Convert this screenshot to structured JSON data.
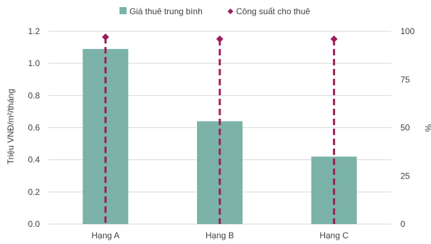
{
  "chart_data": {
    "type": "bar",
    "categories": [
      "Hạng A",
      "Hạng B",
      "Hạng C"
    ],
    "series": [
      {
        "name": "Giá thuê trung bình",
        "kind": "bar",
        "axis": "left",
        "values": [
          1.09,
          0.64,
          0.42
        ],
        "color": "#7bb3a8"
      },
      {
        "name": "Công suất cho thuê",
        "kind": "marker-drop-line",
        "axis": "right",
        "values": [
          97,
          96,
          96
        ],
        "color": "#9b1e5a"
      }
    ],
    "ylabel": "Triệu VNĐ/m²/tháng",
    "y2label": "%",
    "ylim": [
      0,
      1.2
    ],
    "y2lim": [
      0,
      100
    ],
    "yticks": [
      "0.0",
      "0.2",
      "0.4",
      "0.6",
      "0.8",
      "1.0",
      "1.2"
    ],
    "y2ticks": [
      "0",
      "25",
      "50",
      "75",
      "100"
    ],
    "grid": true,
    "legend_position": "top"
  }
}
